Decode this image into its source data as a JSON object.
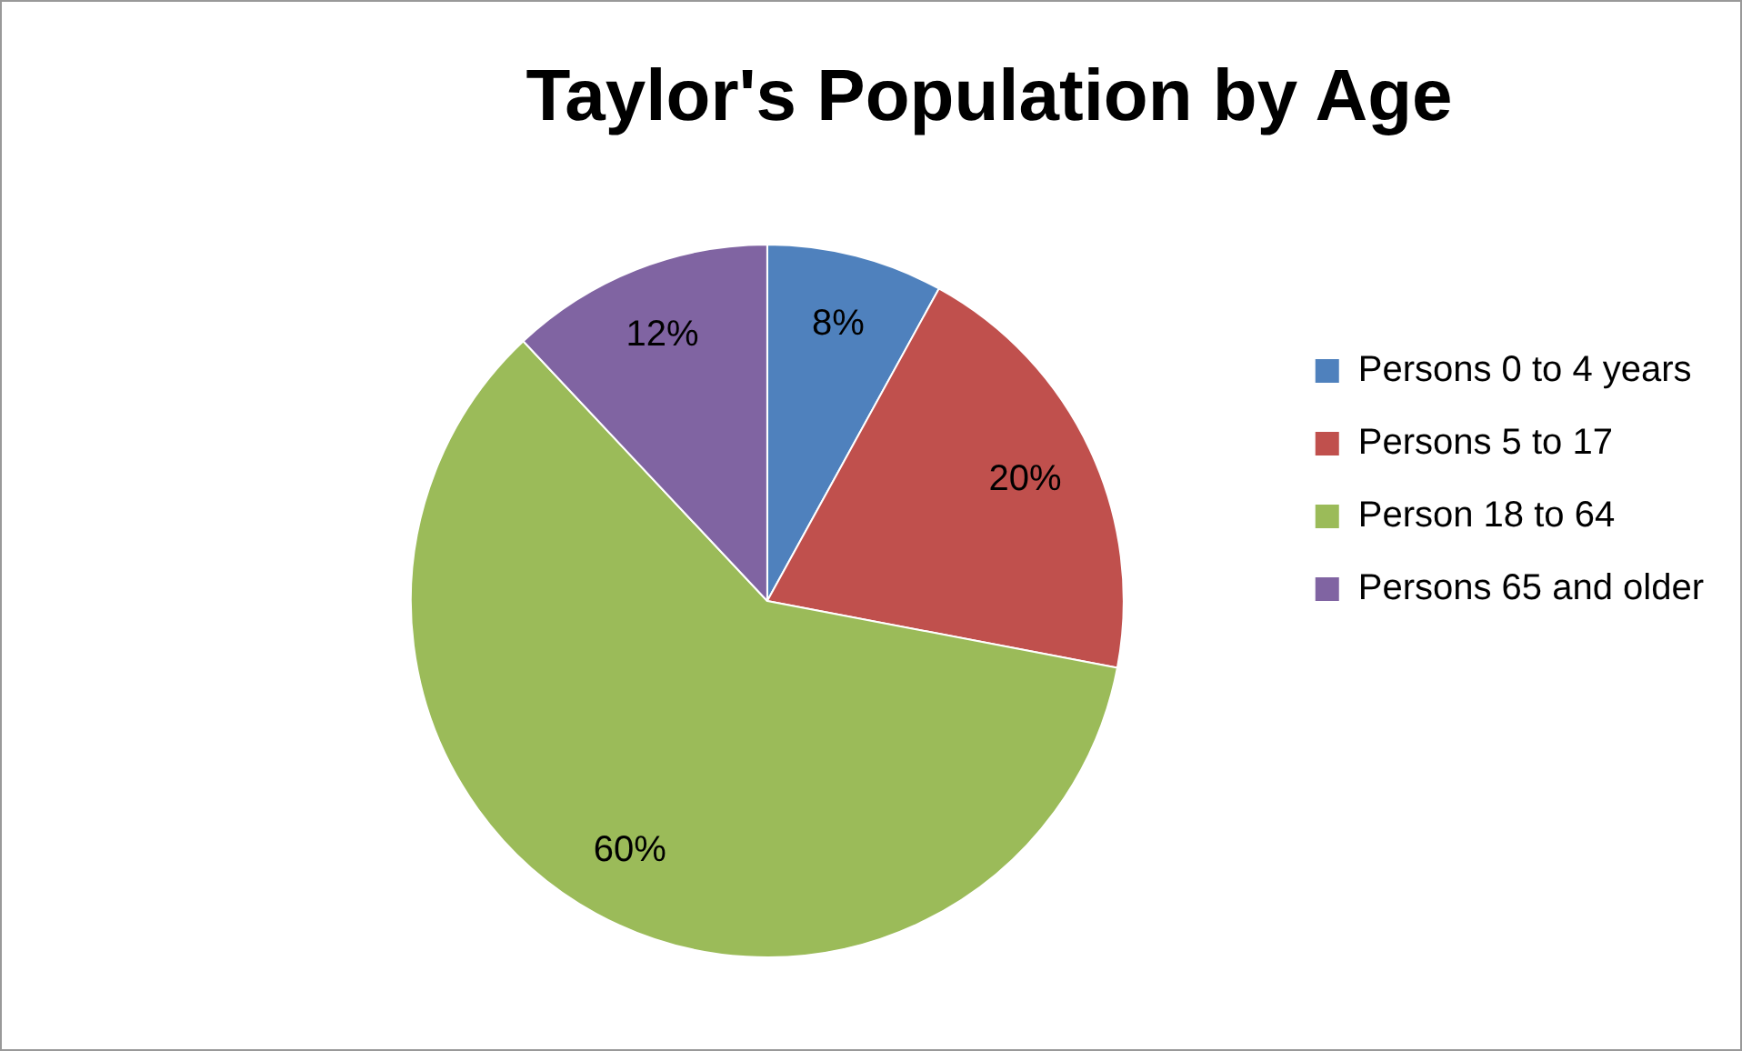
{
  "chart_data": {
    "type": "pie",
    "title": "Taylor's Population by Age",
    "categories": [
      "Persons 0 to 4 years",
      "Persons 5 to 17",
      "Person 18 to 64",
      "Persons 65 and older"
    ],
    "values": [
      8,
      20,
      60,
      12
    ],
    "colors": [
      "#4f81bd",
      "#c0504d",
      "#9bbb59",
      "#8064a2"
    ],
    "value_labels": [
      "8%",
      "20%",
      "60%",
      "12%"
    ],
    "legend": "right"
  }
}
